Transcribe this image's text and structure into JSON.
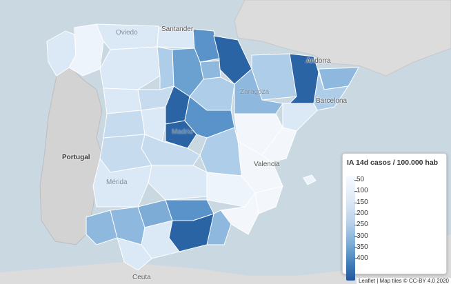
{
  "legend": {
    "title": "IA 14d casos / 100.000 hab",
    "ticks": [
      "50",
      "100",
      "150",
      "200",
      "250",
      "300",
      "350",
      "400"
    ]
  },
  "labels": {
    "oviedo": "Oviedo",
    "santander": "Santander",
    "andorra": "Andorra",
    "barcelona": "Barcelona",
    "zaragoza": "Zaragoza",
    "madrid": "Madrid",
    "valencia": "Valencia",
    "portugal": "Portugal",
    "ceuta": "Ceuta",
    "merida": "Mérida"
  },
  "attribution": {
    "text": "Leaflet | Map tiles © CC-BY 4.0 2020"
  },
  "colors": {
    "sea": "#cad8e2",
    "land": "#dcdcdc",
    "portugal": "#d3d3d3",
    "borders": "#ffffff"
  }
}
